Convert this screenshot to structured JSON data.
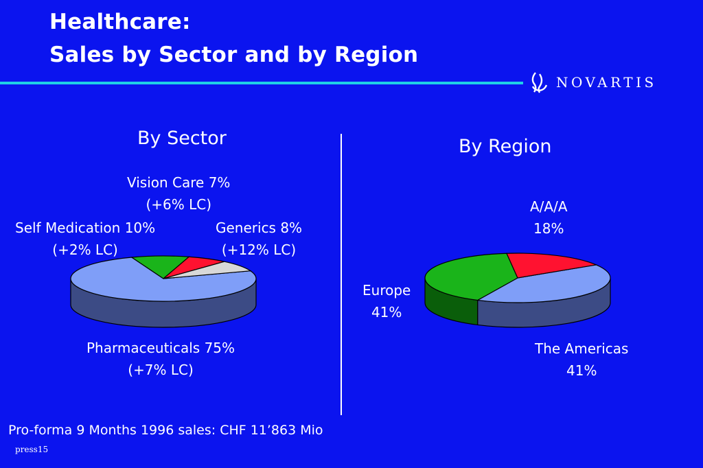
{
  "slide": {
    "title_line1": "Healthcare:",
    "title_line2": "Sales by Sector and by Region",
    "logo_text": "NOVARTIS",
    "footnote": "Pro-forma 9 Months 1996 sales:  CHF 11’863 Mio",
    "slide_code": "press15",
    "colors": {
      "background": "#0b14ef",
      "rule": "#1fd0e6"
    }
  },
  "chart_data": [
    {
      "type": "pie",
      "title": "By Sector",
      "slices": [
        {
          "name": "Pharmaceuticals",
          "percent": 75,
          "lc_growth": "(+7% LC)",
          "label": "Pharmaceuticals 75%",
          "color": "#7f9ef8",
          "side": "#3c4b85"
        },
        {
          "name": "Self Medication",
          "percent": 10,
          "lc_growth": "(+2% LC)",
          "label": "Self Medication 10%",
          "color": "#1ab41a",
          "side": "#0a5e0a"
        },
        {
          "name": "Vision Care",
          "percent": 7,
          "lc_growth": "(+6% LC)",
          "label": "Vision Care 7%",
          "color": "#ff1230",
          "side": "#8a0a18"
        },
        {
          "name": "Generics",
          "percent": 8,
          "lc_growth": "(+12% LC)",
          "label": "Generics 8%",
          "color": "#d8d8d8",
          "side": "#808080"
        }
      ]
    },
    {
      "type": "pie",
      "title": "By Region",
      "slices": [
        {
          "name": "The Americas",
          "percent": 41,
          "label": "The Americas",
          "value_label": "41%",
          "color": "#7f9ef8",
          "side": "#3c4b85"
        },
        {
          "name": "Europe",
          "percent": 41,
          "label": "Europe",
          "value_label": "41%",
          "color": "#1ab41a",
          "side": "#0a5e0a"
        },
        {
          "name": "A/A/A",
          "percent": 18,
          "label": "A/A/A",
          "value_label": "18%",
          "color": "#ff1230",
          "side": "#8a0a18"
        }
      ]
    }
  ]
}
